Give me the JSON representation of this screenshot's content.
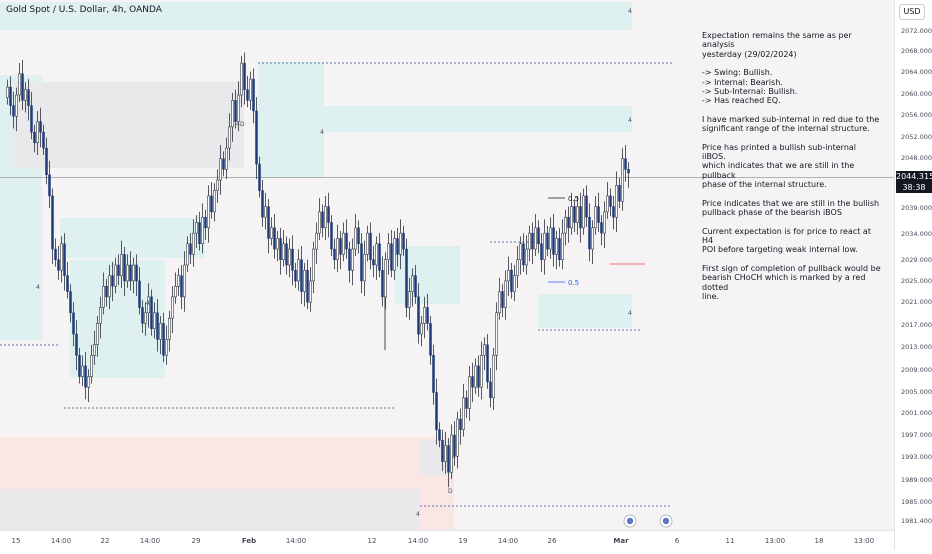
{
  "chart_data": {
    "type": "candlestick",
    "title": "Gold Spot / U.S. Dollar, 4h, OANDA",
    "currency_label": "USD",
    "ylim": [
      1979,
      2075
    ],
    "y_ticks": [
      "2072.000",
      "2068.000",
      "2064.000",
      "2060.000",
      "2056.000",
      "2052.000",
      "2048.000",
      "2039.000",
      "2034.000",
      "2029.000",
      "2025.000",
      "2021.000",
      "2017.000",
      "2013.000",
      "2009.000",
      "2005.000",
      "2001.000",
      "1997.000",
      "1993.000",
      "1989.000",
      "1985.000",
      "1981.400"
    ],
    "x_labels": [
      "15",
      "14:00",
      "22",
      "14:00",
      "29",
      "Feb",
      "14:00",
      "12",
      "14:00",
      "19",
      "14:00",
      "26",
      "Mar",
      "6",
      "11",
      "13:00",
      "18",
      "13:00"
    ],
    "last_price": {
      "value": "2044.315",
      "countdown": "38:38"
    },
    "fib_labels": [
      "0.5",
      "0.5"
    ],
    "zone_labels": [
      "4",
      "4",
      "4",
      "4",
      "4",
      "4",
      "4",
      "4",
      "D",
      "D",
      "4"
    ],
    "candles_close": [
      2060.5,
      2057,
      2055,
      2059,
      2063,
      2058,
      2060,
      2057,
      2052,
      2050,
      2054,
      2052,
      2049,
      2044,
      2040,
      2030,
      2028,
      2026,
      2031,
      2025,
      2022,
      2018,
      2014,
      2010,
      2006,
      2008,
      2004,
      2006,
      2010,
      2012,
      2016,
      2019,
      2023,
      2021,
      2025,
      2023,
      2027,
      2025,
      2029,
      2024,
      2027,
      2024,
      2027,
      2024,
      2019,
      2016,
      2018,
      2021,
      2015,
      2018,
      2013,
      2016,
      2010,
      2013,
      2017,
      2021,
      2023,
      2025,
      2021,
      2027,
      2031,
      2029,
      2033,
      2035,
      2031,
      2036,
      2034,
      2040,
      2037,
      2041,
      2043,
      2047,
      2045,
      2049,
      2053,
      2058,
      2054,
      2059,
      2065,
      2060,
      2058,
      2062,
      2056,
      2046,
      2041,
      2036,
      2038,
      2032,
      2034,
      2030,
      2032,
      2028,
      2031,
      2027,
      2030,
      2026,
      2024,
      2028,
      2022,
      2026,
      2020,
      2024,
      2030,
      2033,
      2037,
      2034,
      2038,
      2035,
      2030,
      2028,
      2032,
      2029,
      2033,
      2030,
      2026,
      2030,
      2034,
      2031,
      2024,
      2029,
      2033,
      2028,
      2027,
      2031,
      2026,
      2021,
      2028,
      2031,
      2026,
      2032,
      2029,
      2033,
      2030,
      2019,
      2022,
      2025,
      2021,
      2014,
      2016,
      2019,
      2016,
      2010,
      2003,
      1996,
      1994,
      1990,
      1993,
      1988,
      1995,
      1991,
      1998,
      1996,
      2002,
      2000,
      2006,
      2004,
      2008,
      2004,
      2010,
      2012,
      2005,
      2002,
      2010,
      2018,
      2022,
      2019,
      2024,
      2026,
      2022,
      2025,
      2028,
      2031,
      2027,
      2030,
      2033,
      2030,
      2034,
      2031,
      2028,
      2033,
      2030,
      2034,
      2029,
      2032,
      2028,
      2033,
      2036,
      2034,
      2038,
      2035,
      2038,
      2034,
      2040,
      2036,
      2030,
      2034,
      2038,
      2035,
      2033,
      2037,
      2040,
      2038,
      2036,
      2042,
      2039,
      2047,
      2045,
      2044.315
    ]
  },
  "annotation": {
    "paragraphs": [
      [
        "Expectation remains the same as per analysis",
        "yesterday (29/02/2024)"
      ],
      [
        "-> Swing:  Bullish.",
        "-> Internal:  Bearish.",
        "-> Sub-Internal:  Bullish.",
        "-> Has reached EQ."
      ],
      [
        "I have marked sub-internal in red due to the",
        "significant range of the internal structure."
      ],
      [
        "Price has printed a bullish sub-internal iiBOS.",
        "which indicates that we are still in the pullback",
        "phase of the internal structure."
      ],
      [
        "Price indicates that we are still in the bullish",
        "pullback phase of the bearish iBOS"
      ],
      [
        "Current expectation is for price to react at H4",
        "POI before targeting weak internal low."
      ],
      [
        "First sign of completion of pullback would be",
        "bearish CHoCH which is marked by a red dotted",
        "line."
      ]
    ]
  },
  "colors": {
    "bull_body": "#ffffff",
    "bear_body": "#1e3a78",
    "wick": "#131722",
    "demand_zone": "#dff0f1",
    "supply_zone": "#fbe6e6",
    "grey_zone": "#e9e9ec",
    "dotted_line": "#2f4f8f",
    "red_line": "#e57373"
  }
}
